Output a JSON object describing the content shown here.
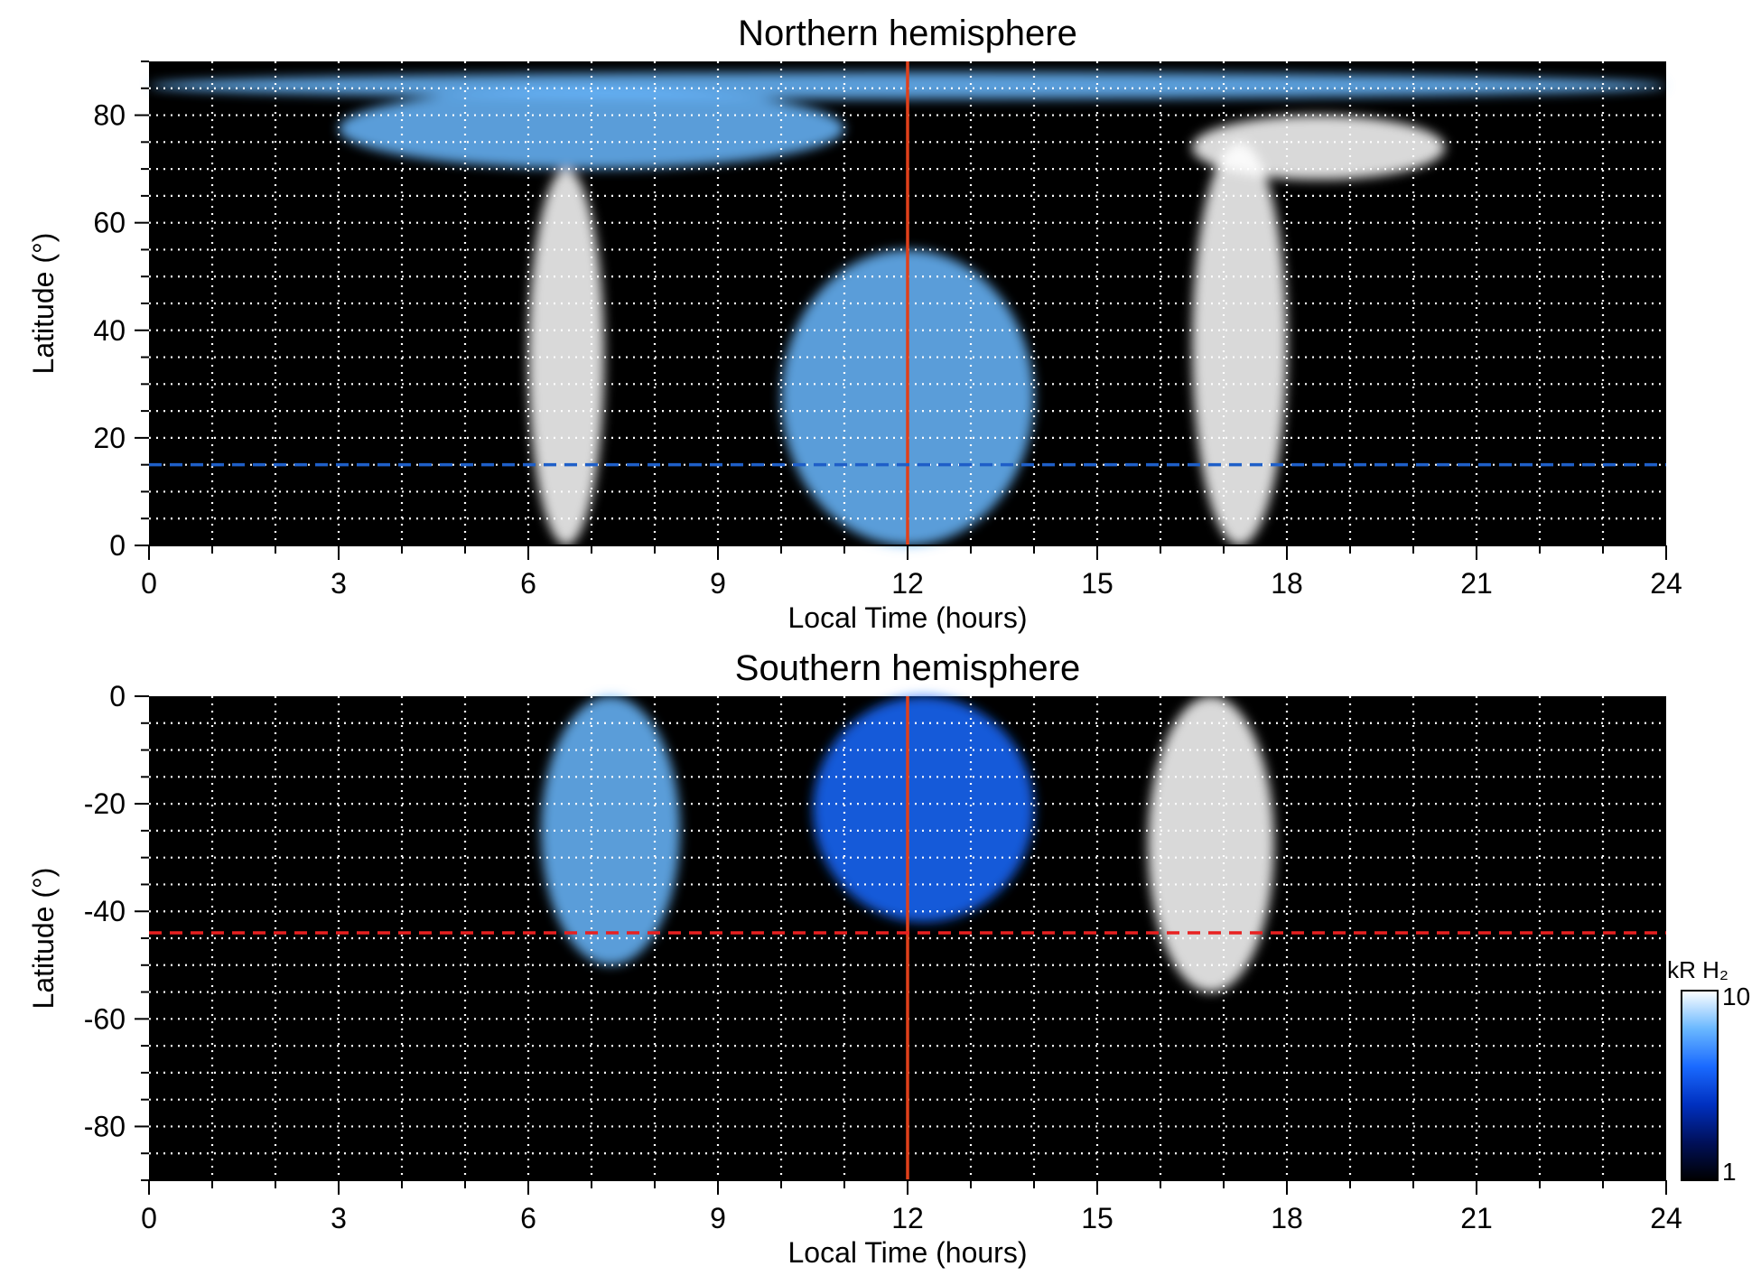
{
  "chart_data": [
    {
      "type": "heatmap",
      "title": "Northern hemisphere",
      "xlabel": "Local Time (hours)",
      "ylabel": "Latitude (°)",
      "xlim": [
        0,
        24
      ],
      "ylim": [
        0,
        90
      ],
      "x_ticks": [
        0,
        3,
        6,
        9,
        12,
        15,
        18,
        21,
        24
      ],
      "y_ticks": [
        0,
        20,
        40,
        60,
        80
      ],
      "grid": true,
      "reference_lines": [
        {
          "orientation": "vertical",
          "x": 12,
          "color": "#e0401a",
          "style": "solid"
        },
        {
          "orientation": "horizontal",
          "y": 15,
          "color": "#1f5fc8",
          "style": "dashed"
        }
      ],
      "emission_regions": [
        {
          "x": [
            6.0,
            7.2
          ],
          "y": [
            0,
            70
          ],
          "peak_kR": 8
        },
        {
          "x": [
            16.5,
            18.0
          ],
          "y": [
            0,
            75
          ],
          "peak_kR": 10
        },
        {
          "x": [
            16.5,
            20.5
          ],
          "y": [
            68,
            80
          ],
          "peak_kR": 8
        },
        {
          "x": [
            3.0,
            11.0
          ],
          "y": [
            70,
            85
          ],
          "peak_kR": 5
        },
        {
          "x": [
            0,
            24
          ],
          "y": [
            83,
            88
          ],
          "peak_kR": 4
        },
        {
          "x": [
            10.0,
            14.0
          ],
          "y": [
            0,
            55
          ],
          "peak_kR": 4
        }
      ]
    },
    {
      "type": "heatmap",
      "title": "Southern hemisphere",
      "xlabel": "Local Time (hours)",
      "ylabel": "Latitude (°)",
      "xlim": [
        0,
        24
      ],
      "ylim": [
        -90,
        0
      ],
      "x_ticks": [
        0,
        3,
        6,
        9,
        12,
        15,
        18,
        21,
        24
      ],
      "y_ticks": [
        0,
        -20,
        -40,
        -60,
        -80
      ],
      "grid": true,
      "reference_lines": [
        {
          "orientation": "vertical",
          "x": 12,
          "color": "#e0401a",
          "style": "solid"
        },
        {
          "orientation": "horizontal",
          "y": -44,
          "color": "#e82020",
          "style": "dashed"
        }
      ],
      "emission_regions": [
        {
          "x": [
            6.2,
            8.4
          ],
          "y": [
            -50,
            0
          ],
          "peak_kR": 6
        },
        {
          "x": [
            15.8,
            17.8
          ],
          "y": [
            -55,
            0
          ],
          "peak_kR": 10
        },
        {
          "x": [
            10.5,
            14.0
          ],
          "y": [
            -42,
            0
          ],
          "peak_kR": 3
        }
      ]
    }
  ],
  "colorbar": {
    "label": "kR H₂",
    "min_label": "1",
    "max_label": "10",
    "scale": "log",
    "colors": [
      "#000000",
      "#00105a",
      "#0030c0",
      "#1a6aff",
      "#6ab8ff",
      "#ffffff"
    ]
  }
}
